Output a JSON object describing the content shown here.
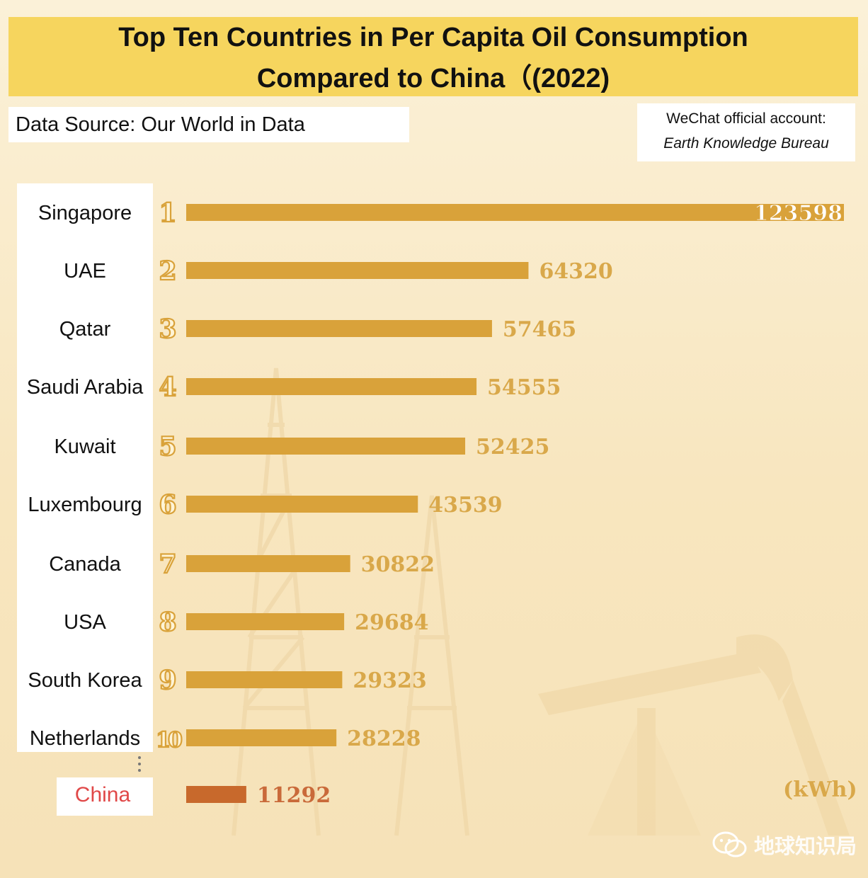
{
  "title": {
    "line1": "Top Ten Countries in Per Capita Oil Consumption",
    "line2": "Compared to China（(2022)"
  },
  "source": "Data Source: Our World in Data",
  "account": {
    "line1": "WeChat official account:",
    "line2": "Earth Knowledge Bureau"
  },
  "watermark": "地球知识局",
  "colors": {
    "bar": "#d9a23a",
    "value": "#d9a84a",
    "china_bar": "#c8692c",
    "china_value": "#c96a3a",
    "china_label": "#e04848",
    "title_bg": "#f6d55e"
  },
  "chart_data": {
    "type": "bar",
    "orientation": "horizontal",
    "categories": [
      "Singapore",
      "UAE",
      "Qatar",
      "Saudi Arabia",
      "Kuwait",
      "Luxembourg",
      "Canada",
      "USA",
      "South Korea",
      "Netherlands",
      "China"
    ],
    "ranks": [
      "1",
      "2",
      "3",
      "4",
      "5",
      "6",
      "7",
      "8",
      "9",
      "10",
      ""
    ],
    "values": [
      123598,
      64320,
      57465,
      54555,
      52425,
      43539,
      30822,
      29684,
      29323,
      28228,
      11292
    ],
    "highlight": "China",
    "unit": "(kWh)",
    "xlim": [
      0,
      123598
    ],
    "grid": false,
    "legend": "none"
  }
}
